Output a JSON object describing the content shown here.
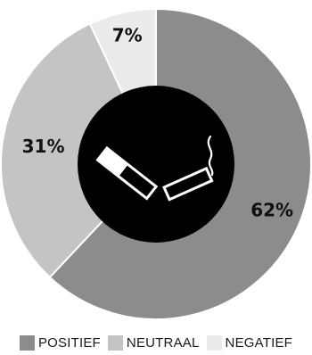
{
  "chart_data": {
    "type": "pie",
    "variant": "donut",
    "slices": [
      {
        "name": "POSITIEF",
        "value": 62,
        "label": "62%",
        "color": "#8c8c8c"
      },
      {
        "name": "NEUTRAAL",
        "value": 31,
        "label": "31%",
        "color": "#c4c4c4"
      },
      {
        "name": "NEGATIEF",
        "value": 7,
        "label": "7%",
        "color": "#ebebeb"
      }
    ],
    "legend_position": "bottom",
    "center_color": "#000000",
    "center_icon": "cigarette-icon"
  }
}
